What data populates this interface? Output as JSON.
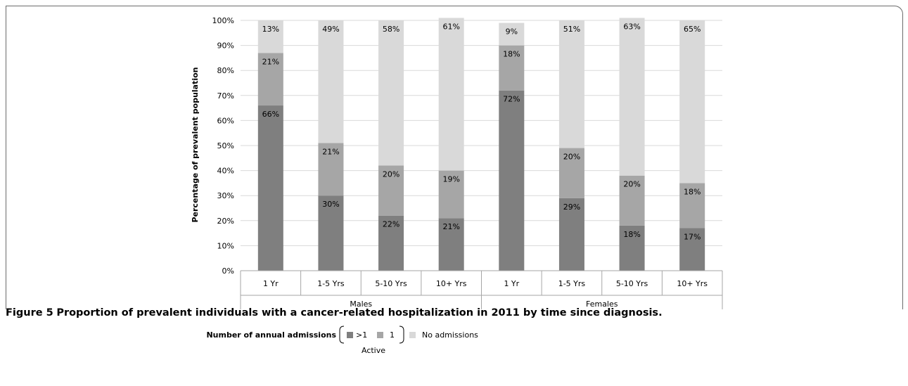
{
  "chart_data": {
    "type": "bar",
    "stacked": true,
    "percent_stacked": true,
    "ylabel": "Percentage of prevalent population",
    "yticks": [
      "0%",
      "10%",
      "20%",
      "30%",
      "40%",
      "50%",
      "60%",
      "70%",
      "80%",
      "90%",
      "100%"
    ],
    "ylim": [
      0,
      100
    ],
    "categories": [
      "1 Yr",
      "1-5 Yrs",
      "5-10 Yrs",
      "10+ Yrs",
      "1 Yr",
      "1-5 Yrs",
      "5-10 Yrs",
      "10+ Yrs"
    ],
    "groups": [
      {
        "label": "Males",
        "categories": [
          "1 Yr",
          "1-5 Yrs",
          "5-10 Yrs",
          "10+ Yrs"
        ]
      },
      {
        "label": "Females",
        "categories": [
          "1 Yr",
          "1-5 Yrs",
          "5-10 Yrs",
          "10+ Yrs"
        ]
      }
    ],
    "series": [
      {
        "name": ">1",
        "color": "#7f7f7f",
        "values": [
          66,
          30,
          22,
          21,
          72,
          29,
          18,
          17
        ],
        "labels": [
          "66%",
          "30%",
          "22%",
          "21%",
          "72%",
          "29%",
          "18%",
          "17%"
        ]
      },
      {
        "name": "1",
        "color": "#a6a6a6",
        "values": [
          21,
          21,
          20,
          19,
          18,
          20,
          20,
          18
        ],
        "labels": [
          "21%",
          "21%",
          "20%",
          "19%",
          "18%",
          "20%",
          "20%",
          "18%"
        ]
      },
      {
        "name": "No admissions",
        "color": "#d9d9d9",
        "values": [
          13,
          49,
          58,
          61,
          9,
          51,
          63,
          65
        ],
        "labels": [
          "13%",
          "49%",
          "58%",
          "61%",
          "9%",
          "51%",
          "63%",
          "65%"
        ]
      }
    ],
    "legend": {
      "title": "Number of annual admissions",
      "bracket_label": "Active",
      "placement": "bottom"
    },
    "grid": true
  },
  "caption": {
    "label": "Figure 5",
    "text": "Proportion of prevalent individuals with a cancer-related hospitalization in 2011 by time since diagnosis."
  }
}
